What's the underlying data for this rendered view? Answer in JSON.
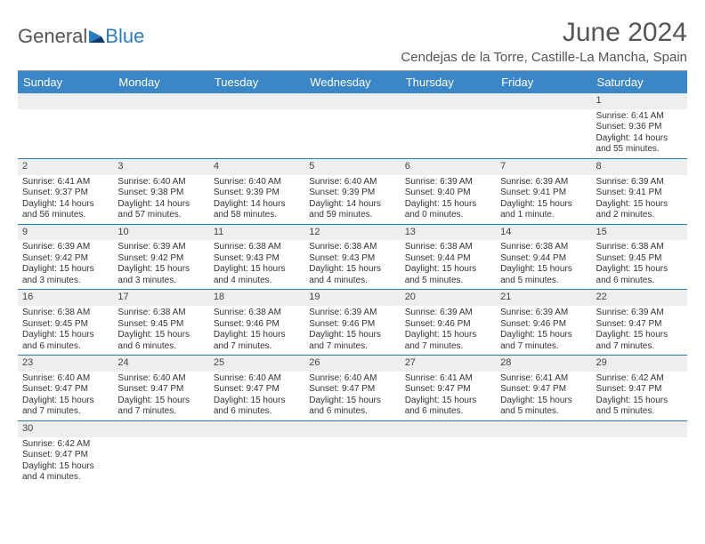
{
  "logo": {
    "general": "General",
    "blue": "Blue"
  },
  "title": "June 2024",
  "location": "Cendejas de la Torre, Castille-La Mancha, Spain",
  "colors": {
    "header_bg": "#3b86c6",
    "header_text": "#ffffff",
    "week_border": "#2b7bbf",
    "daynum_bg": "#eceeef",
    "text": "#333333",
    "title_text": "#555555"
  },
  "day_names": [
    "Sunday",
    "Monday",
    "Tuesday",
    "Wednesday",
    "Thursday",
    "Friday",
    "Saturday"
  ],
  "weeks": [
    [
      null,
      null,
      null,
      null,
      null,
      null,
      {
        "n": "1",
        "sr": "Sunrise: 6:41 AM",
        "ss": "Sunset: 9:36 PM",
        "dl": "Daylight: 14 hours and 55 minutes."
      }
    ],
    [
      {
        "n": "2",
        "sr": "Sunrise: 6:41 AM",
        "ss": "Sunset: 9:37 PM",
        "dl": "Daylight: 14 hours and 56 minutes."
      },
      {
        "n": "3",
        "sr": "Sunrise: 6:40 AM",
        "ss": "Sunset: 9:38 PM",
        "dl": "Daylight: 14 hours and 57 minutes."
      },
      {
        "n": "4",
        "sr": "Sunrise: 6:40 AM",
        "ss": "Sunset: 9:39 PM",
        "dl": "Daylight: 14 hours and 58 minutes."
      },
      {
        "n": "5",
        "sr": "Sunrise: 6:40 AM",
        "ss": "Sunset: 9:39 PM",
        "dl": "Daylight: 14 hours and 59 minutes."
      },
      {
        "n": "6",
        "sr": "Sunrise: 6:39 AM",
        "ss": "Sunset: 9:40 PM",
        "dl": "Daylight: 15 hours and 0 minutes."
      },
      {
        "n": "7",
        "sr": "Sunrise: 6:39 AM",
        "ss": "Sunset: 9:41 PM",
        "dl": "Daylight: 15 hours and 1 minute."
      },
      {
        "n": "8",
        "sr": "Sunrise: 6:39 AM",
        "ss": "Sunset: 9:41 PM",
        "dl": "Daylight: 15 hours and 2 minutes."
      }
    ],
    [
      {
        "n": "9",
        "sr": "Sunrise: 6:39 AM",
        "ss": "Sunset: 9:42 PM",
        "dl": "Daylight: 15 hours and 3 minutes."
      },
      {
        "n": "10",
        "sr": "Sunrise: 6:39 AM",
        "ss": "Sunset: 9:42 PM",
        "dl": "Daylight: 15 hours and 3 minutes."
      },
      {
        "n": "11",
        "sr": "Sunrise: 6:38 AM",
        "ss": "Sunset: 9:43 PM",
        "dl": "Daylight: 15 hours and 4 minutes."
      },
      {
        "n": "12",
        "sr": "Sunrise: 6:38 AM",
        "ss": "Sunset: 9:43 PM",
        "dl": "Daylight: 15 hours and 4 minutes."
      },
      {
        "n": "13",
        "sr": "Sunrise: 6:38 AM",
        "ss": "Sunset: 9:44 PM",
        "dl": "Daylight: 15 hours and 5 minutes."
      },
      {
        "n": "14",
        "sr": "Sunrise: 6:38 AM",
        "ss": "Sunset: 9:44 PM",
        "dl": "Daylight: 15 hours and 5 minutes."
      },
      {
        "n": "15",
        "sr": "Sunrise: 6:38 AM",
        "ss": "Sunset: 9:45 PM",
        "dl": "Daylight: 15 hours and 6 minutes."
      }
    ],
    [
      {
        "n": "16",
        "sr": "Sunrise: 6:38 AM",
        "ss": "Sunset: 9:45 PM",
        "dl": "Daylight: 15 hours and 6 minutes."
      },
      {
        "n": "17",
        "sr": "Sunrise: 6:38 AM",
        "ss": "Sunset: 9:45 PM",
        "dl": "Daylight: 15 hours and 6 minutes."
      },
      {
        "n": "18",
        "sr": "Sunrise: 6:38 AM",
        "ss": "Sunset: 9:46 PM",
        "dl": "Daylight: 15 hours and 7 minutes."
      },
      {
        "n": "19",
        "sr": "Sunrise: 6:39 AM",
        "ss": "Sunset: 9:46 PM",
        "dl": "Daylight: 15 hours and 7 minutes."
      },
      {
        "n": "20",
        "sr": "Sunrise: 6:39 AM",
        "ss": "Sunset: 9:46 PM",
        "dl": "Daylight: 15 hours and 7 minutes."
      },
      {
        "n": "21",
        "sr": "Sunrise: 6:39 AM",
        "ss": "Sunset: 9:46 PM",
        "dl": "Daylight: 15 hours and 7 minutes."
      },
      {
        "n": "22",
        "sr": "Sunrise: 6:39 AM",
        "ss": "Sunset: 9:47 PM",
        "dl": "Daylight: 15 hours and 7 minutes."
      }
    ],
    [
      {
        "n": "23",
        "sr": "Sunrise: 6:40 AM",
        "ss": "Sunset: 9:47 PM",
        "dl": "Daylight: 15 hours and 7 minutes."
      },
      {
        "n": "24",
        "sr": "Sunrise: 6:40 AM",
        "ss": "Sunset: 9:47 PM",
        "dl": "Daylight: 15 hours and 7 minutes."
      },
      {
        "n": "25",
        "sr": "Sunrise: 6:40 AM",
        "ss": "Sunset: 9:47 PM",
        "dl": "Daylight: 15 hours and 6 minutes."
      },
      {
        "n": "26",
        "sr": "Sunrise: 6:40 AM",
        "ss": "Sunset: 9:47 PM",
        "dl": "Daylight: 15 hours and 6 minutes."
      },
      {
        "n": "27",
        "sr": "Sunrise: 6:41 AM",
        "ss": "Sunset: 9:47 PM",
        "dl": "Daylight: 15 hours and 6 minutes."
      },
      {
        "n": "28",
        "sr": "Sunrise: 6:41 AM",
        "ss": "Sunset: 9:47 PM",
        "dl": "Daylight: 15 hours and 5 minutes."
      },
      {
        "n": "29",
        "sr": "Sunrise: 6:42 AM",
        "ss": "Sunset: 9:47 PM",
        "dl": "Daylight: 15 hours and 5 minutes."
      }
    ],
    [
      {
        "n": "30",
        "sr": "Sunrise: 6:42 AM",
        "ss": "Sunset: 9:47 PM",
        "dl": "Daylight: 15 hours and 4 minutes."
      },
      null,
      null,
      null,
      null,
      null,
      null
    ]
  ]
}
